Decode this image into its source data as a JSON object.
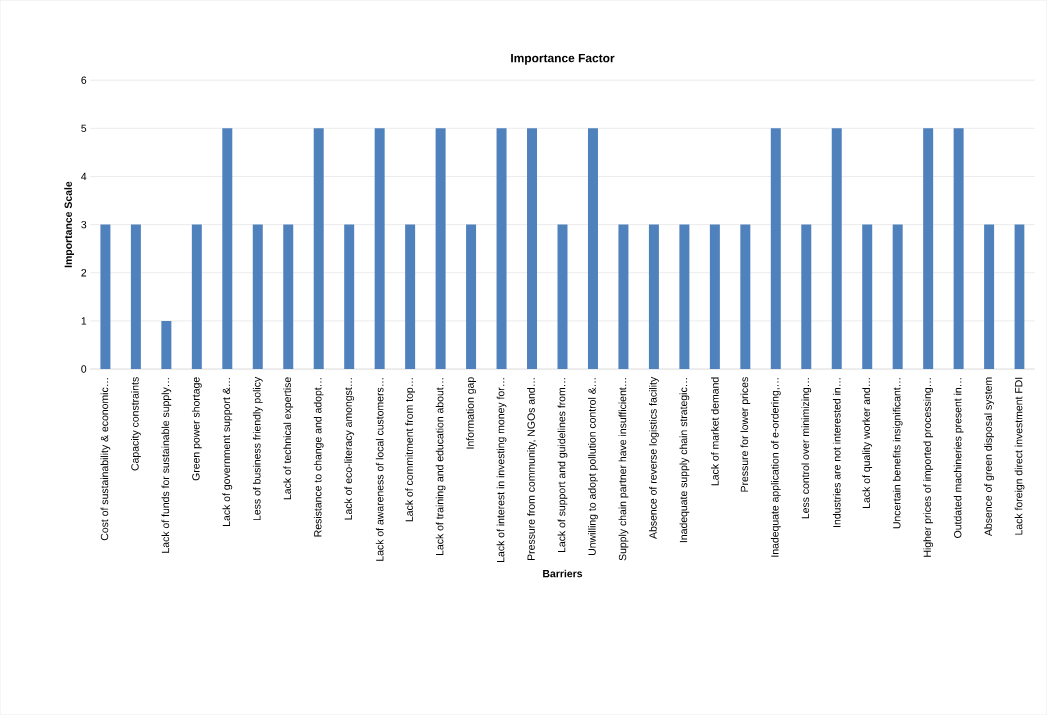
{
  "chart_data": {
    "type": "bar",
    "title": "Importance Factor",
    "xlabel": "Barriers",
    "ylabel": "Importance Scale",
    "categories": [
      "Cost of sustainability & economic…",
      "Capacity constraints",
      "Lack of funds for sustainable supply…",
      "Green power shortage",
      "Lack of government support &…",
      "Less of business friendly policy",
      "Lack of technical expertise",
      "Resistance to change and adopt…",
      "Lack of eco-literacy amongst…",
      "Lack of awareness of local customers…",
      "Lack of commitment from top…",
      "Lack of training and education about…",
      "Information gap",
      "Lack of interest in investing money for…",
      "Pressure from community, NGOs and…",
      "Lack of support and guidelines from…",
      "Unwilling to adopt pollution control &…",
      "Supply chain partner have insufficient…",
      "Absence of reverse logistics facility",
      "Inadequate supply chain strategic…",
      "Lack of market demand",
      "Pressure for lower prices",
      "Inadequate application of e-ordering,…",
      "Less control over minimizing…",
      "Industries are not interested in…",
      "Lack of quality worker and…",
      "Uncertain benefits insignificant…",
      "Higher prices of imported processing…",
      "Outdated machineries present in…",
      "Absence of green disposal system",
      "Lack foreign direct investment FDI"
    ],
    "values": [
      3,
      3,
      1,
      3,
      5,
      3,
      3,
      5,
      3,
      5,
      3,
      5,
      3,
      5,
      5,
      3,
      5,
      3,
      3,
      3,
      3,
      3,
      5,
      3,
      5,
      3,
      3,
      5,
      5,
      3,
      3
    ],
    "color": "#4f81bd",
    "ylim": [
      0,
      6
    ],
    "yticks": [
      0,
      1,
      2,
      3,
      4,
      5,
      6
    ],
    "grid": "y"
  }
}
